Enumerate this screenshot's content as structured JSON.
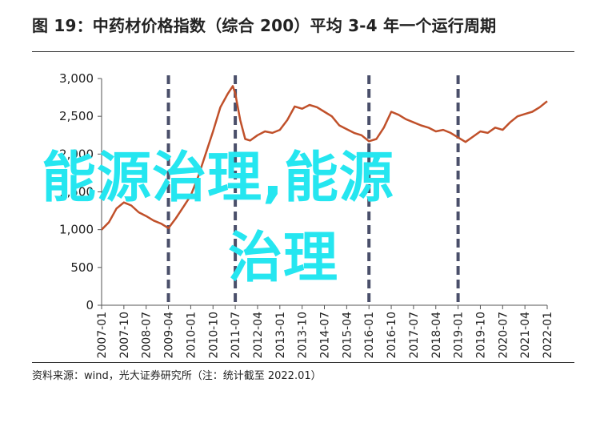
{
  "title": "图 19：中药材价格指数（综合 200）平均 3-4 年一个运行周期",
  "source": "资料来源：wind，光大证券研究所（注：统计截至 2022.01）",
  "watermark": {
    "line1": "能源治理,能源",
    "line2": "治理",
    "color": "#25E6F0"
  },
  "chart_data": {
    "type": "line",
    "title": "中药材价格指数（综合 200）",
    "xlabel": "",
    "ylabel": "",
    "ylim": [
      0,
      3000
    ],
    "yticks": [
      0,
      500,
      1000,
      1500,
      2000,
      2500,
      3000
    ],
    "ytick_labels": [
      "0",
      "500",
      "1,000",
      "1,500",
      "2,000",
      "2,500",
      "3,000"
    ],
    "xticks": [
      "2007-01",
      "2007-10",
      "2008-07",
      "2009-04",
      "2010-01",
      "2010-10",
      "2011-07",
      "2012-04",
      "2013-01",
      "2013-10",
      "2014-07",
      "2015-04",
      "2016-01",
      "2016-10",
      "2017-07",
      "2018-04",
      "2019-01",
      "2019-10",
      "2020-07",
      "2021-04",
      "2022-01"
    ],
    "grid": false,
    "line_color": "#C0502A",
    "cycle_markers": [
      "2009-04",
      "2011-07",
      "2016-01",
      "2019-01"
    ],
    "cycle_marker_color": "#4A4F6A",
    "series": [
      {
        "points": [
          [
            "2007-01",
            1000
          ],
          [
            "2007-04",
            1100
          ],
          [
            "2007-07",
            1280
          ],
          [
            "2007-10",
            1360
          ],
          [
            "2008-01",
            1320
          ],
          [
            "2008-04",
            1230
          ],
          [
            "2008-07",
            1180
          ],
          [
            "2008-10",
            1120
          ],
          [
            "2009-01",
            1080
          ],
          [
            "2009-04",
            1020
          ],
          [
            "2009-07",
            1150
          ],
          [
            "2009-10",
            1300
          ],
          [
            "2010-01",
            1450
          ],
          [
            "2010-04",
            1700
          ],
          [
            "2010-07",
            2000
          ],
          [
            "2010-10",
            2300
          ],
          [
            "2011-01",
            2620
          ],
          [
            "2011-04",
            2800
          ],
          [
            "2011-06",
            2900
          ],
          [
            "2011-07",
            2800
          ],
          [
            "2011-09",
            2450
          ],
          [
            "2011-11",
            2200
          ],
          [
            "2012-01",
            2180
          ],
          [
            "2012-04",
            2250
          ],
          [
            "2012-07",
            2300
          ],
          [
            "2012-10",
            2280
          ],
          [
            "2013-01",
            2320
          ],
          [
            "2013-04",
            2450
          ],
          [
            "2013-07",
            2630
          ],
          [
            "2013-10",
            2600
          ],
          [
            "2014-01",
            2650
          ],
          [
            "2014-04",
            2620
          ],
          [
            "2014-07",
            2560
          ],
          [
            "2014-10",
            2500
          ],
          [
            "2015-01",
            2380
          ],
          [
            "2015-04",
            2330
          ],
          [
            "2015-07",
            2280
          ],
          [
            "2015-10",
            2250
          ],
          [
            "2016-01",
            2170
          ],
          [
            "2016-04",
            2200
          ],
          [
            "2016-07",
            2350
          ],
          [
            "2016-10",
            2560
          ],
          [
            "2017-01",
            2520
          ],
          [
            "2017-04",
            2460
          ],
          [
            "2017-07",
            2420
          ],
          [
            "2017-10",
            2380
          ],
          [
            "2018-01",
            2350
          ],
          [
            "2018-04",
            2300
          ],
          [
            "2018-07",
            2320
          ],
          [
            "2018-10",
            2280
          ],
          [
            "2019-01",
            2220
          ],
          [
            "2019-04",
            2160
          ],
          [
            "2019-07",
            2230
          ],
          [
            "2019-10",
            2300
          ],
          [
            "2020-01",
            2280
          ],
          [
            "2020-04",
            2350
          ],
          [
            "2020-07",
            2320
          ],
          [
            "2020-10",
            2420
          ],
          [
            "2021-01",
            2500
          ],
          [
            "2021-04",
            2530
          ],
          [
            "2021-07",
            2560
          ],
          [
            "2021-10",
            2620
          ],
          [
            "2022-01",
            2700
          ]
        ]
      }
    ]
  }
}
